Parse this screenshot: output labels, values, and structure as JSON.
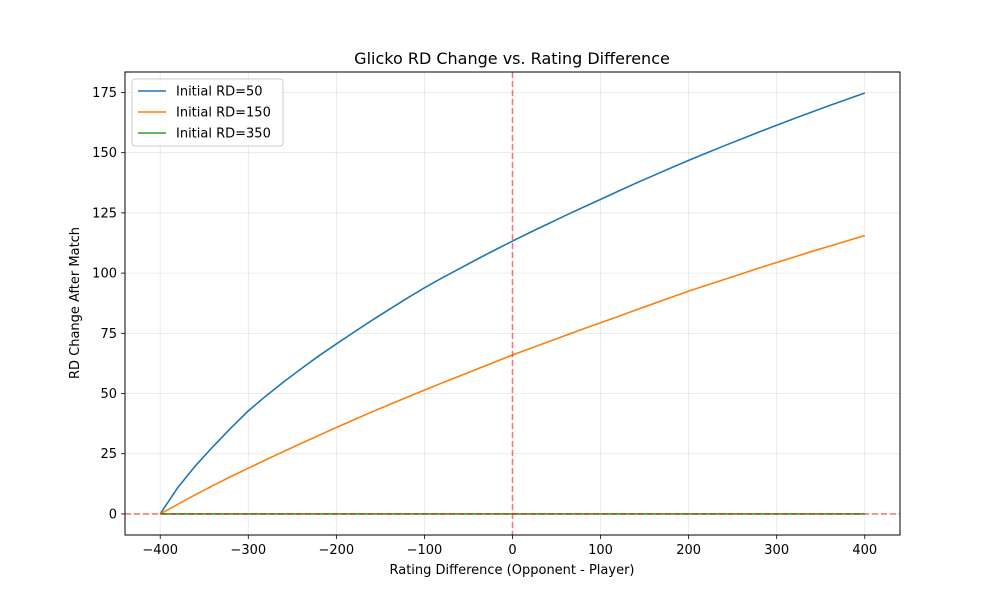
{
  "chart_data": {
    "type": "line",
    "title": "Glicko RD Change vs. Rating Difference",
    "xlabel": "Rating Difference (Opponent - Player)",
    "ylabel": "RD Change After Match",
    "xlim": [
      -440,
      440
    ],
    "ylim": [
      -8.74,
      183.5
    ],
    "xticks": [
      -400,
      -300,
      -200,
      -100,
      0,
      100,
      200,
      300,
      400
    ],
    "xtick_labels": [
      "−400",
      "−300",
      "−200",
      "−100",
      "0",
      "100",
      "200",
      "300",
      "400"
    ],
    "yticks": [
      0,
      25,
      50,
      75,
      100,
      125,
      150,
      175
    ],
    "ytick_labels": [
      "0",
      "25",
      "50",
      "75",
      "100",
      "125",
      "150",
      "175"
    ],
    "grid": true,
    "legend_placement": "upper-left",
    "reference_lines": [
      {
        "orientation": "vertical",
        "value": 0,
        "color": "#ff0000",
        "style": "dashed"
      },
      {
        "orientation": "horizontal",
        "value": 0,
        "color": "#ff0000",
        "style": "dashed"
      }
    ],
    "x": [
      -400,
      -380,
      -360,
      -340,
      -320,
      -300,
      -280,
      -260,
      -240,
      -220,
      -200,
      -180,
      -160,
      -140,
      -120,
      -100,
      -80,
      -60,
      -40,
      -20,
      0,
      20,
      40,
      60,
      80,
      100,
      120,
      140,
      160,
      180,
      200,
      220,
      240,
      260,
      280,
      300,
      320,
      340,
      360,
      380,
      400
    ],
    "series": [
      {
        "name": "Initial RD=50",
        "color": "#1f77b4",
        "values": [
          0,
          11,
          20,
          28,
          35.6,
          42.8,
          49.0,
          54.8,
          60.3,
          65.6,
          70.6,
          75.5,
          80.3,
          84.9,
          89.5,
          93.9,
          98.0,
          101.9,
          105.8,
          109.6,
          113.3,
          116.9,
          120.4,
          123.9,
          127.3,
          130.6,
          134.0,
          137.3,
          140.5,
          143.7,
          146.8,
          149.8,
          152.8,
          155.7,
          158.6,
          161.4,
          164.2,
          166.9,
          169.6,
          172.2,
          174.8
        ]
      },
      {
        "name": "Initial RD=150",
        "color": "#ff7f0e",
        "values": [
          0,
          4.0,
          8.0,
          11.8,
          15.5,
          19.0,
          22.5,
          25.9,
          29.3,
          32.6,
          35.9,
          39.1,
          42.3,
          45.4,
          48.4,
          51.4,
          54.4,
          57.3,
          60.2,
          63.1,
          66.0,
          68.7,
          71.4,
          74.1,
          76.8,
          79.4,
          82.0,
          84.7,
          87.3,
          89.9,
          92.5,
          94.9,
          97.3,
          99.7,
          102.1,
          104.4,
          106.7,
          109.0,
          111.2,
          113.4,
          115.6
        ]
      },
      {
        "name": "Initial RD=350",
        "color": "#2ca02c",
        "values": [
          0,
          0,
          0,
          0,
          0,
          0,
          0,
          0,
          0,
          0,
          0,
          0,
          0,
          0,
          0,
          0,
          0,
          0,
          0,
          0,
          0,
          0,
          0,
          0,
          0,
          0,
          0,
          0,
          0,
          0,
          0,
          0,
          0,
          0,
          0,
          0,
          0,
          0,
          0,
          0,
          0
        ]
      }
    ]
  }
}
